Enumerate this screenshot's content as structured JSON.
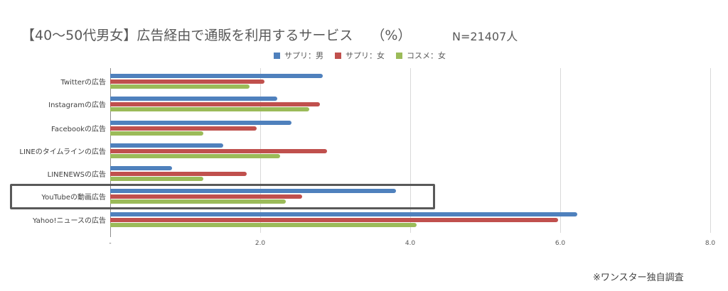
{
  "header": {
    "title": "【40〜50代男女】広告経由で通販を利用するサービス",
    "unit": "（%）",
    "sample_size": "N=21407人"
  },
  "legend": [
    {
      "label": "サプリ：男",
      "color": "#4F81BD"
    },
    {
      "label": "サプリ：女",
      "color": "#C0504D"
    },
    {
      "label": "コスメ：女",
      "color": "#9BBB59"
    }
  ],
  "axis": {
    "ticks": [
      "-",
      "2.0",
      "4.0",
      "6.0",
      "8.0"
    ]
  },
  "highlight_label": "YouTubeの動画広告",
  "footer": {
    "source": "※ワンスター独自調査"
  },
  "chart_data": {
    "type": "bar",
    "orientation": "horizontal",
    "title": "【40〜50代男女】広告経由で通販を利用するサービス （%）",
    "subtitle": "N=21407人",
    "categories": [
      "Twitterの広告",
      "Instagramの広告",
      "Facebookの広告",
      "LINEのタイムラインの広告",
      "LINENEWSの広告",
      "YouTubeの動画広告",
      "Yahoo!ニュースの広告"
    ],
    "series": [
      {
        "name": "サプリ：男",
        "color": "#4F81BD",
        "values": [
          2.83,
          2.23,
          2.42,
          1.51,
          0.82,
          3.81,
          6.23
        ]
      },
      {
        "name": "サプリ：女",
        "color": "#C0504D",
        "values": [
          2.06,
          2.8,
          1.95,
          2.89,
          1.82,
          2.56,
          5.97
        ]
      },
      {
        "name": "コスメ：女",
        "color": "#9BBB59",
        "values": [
          1.86,
          2.65,
          1.24,
          2.27,
          1.24,
          2.34,
          4.09
        ]
      }
    ],
    "xlabel": "",
    "ylabel": "",
    "xlim": [
      0,
      8
    ],
    "xticks": [
      "-",
      "2.0",
      "4.0",
      "6.0",
      "8.0"
    ],
    "grid": true,
    "legend_position": "top",
    "annotations": [
      "YouTubeの動画広告 highlighted with box",
      "※ワンスター独自調査"
    ]
  }
}
